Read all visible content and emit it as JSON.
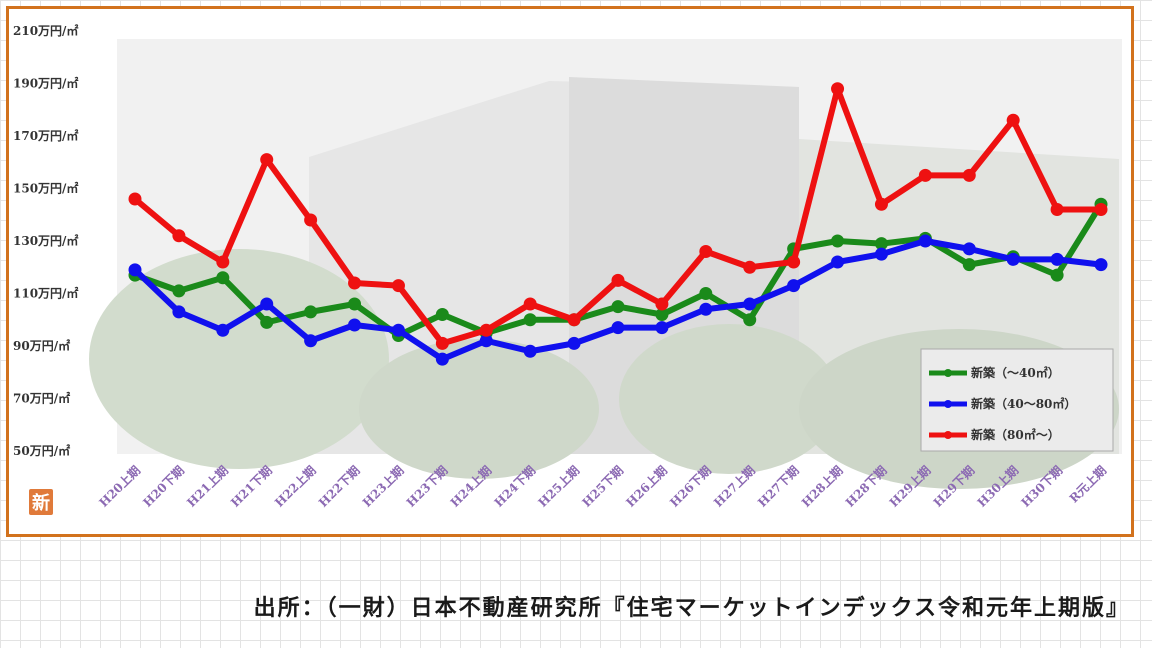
{
  "chart_data": {
    "type": "line",
    "categories": [
      "H20上期",
      "H20下期",
      "H21上期",
      "H21下期",
      "H22上期",
      "H22下期",
      "H23上期",
      "H23下期",
      "H24上期",
      "H24下期",
      "H25上期",
      "H25下期",
      "H26上期",
      "H26下期",
      "H27上期",
      "H27下期",
      "H28上期",
      "H28下期",
      "H29上期",
      "H29下期",
      "H30上期",
      "H30下期",
      "R元上期"
    ],
    "y_tick_labels": [
      "210万円/㎡",
      "190万円/㎡",
      "170万円/㎡",
      "150万円/㎡",
      "130万円/㎡",
      "110万円/㎡",
      "90万円/㎡",
      "70万円/㎡",
      "50万円/㎡"
    ],
    "y_ticks": [
      210,
      190,
      170,
      150,
      130,
      110,
      90,
      70,
      50
    ],
    "ylim": [
      50,
      210
    ],
    "legend_position": "bottom-right",
    "series": [
      {
        "name": "新築（～40㎡）",
        "color": "#1a8a1a",
        "values": [
          117,
          111,
          116,
          99,
          103,
          106,
          94,
          102,
          95,
          100,
          100,
          105,
          102,
          110,
          100,
          127,
          130,
          129,
          131,
          121,
          124,
          117,
          144
        ]
      },
      {
        "name": "新築（40～80㎡）",
        "color": "#1010ee",
        "values": [
          119,
          103,
          96,
          106,
          92,
          98,
          96,
          85,
          92,
          88,
          91,
          97,
          97,
          104,
          106,
          113,
          122,
          125,
          130,
          127,
          123,
          123,
          121
        ]
      },
      {
        "name": "新築（80㎡～）",
        "color": "#ee1111",
        "values": [
          146,
          132,
          122,
          161,
          138,
          114,
          113,
          91,
          96,
          106,
          100,
          115,
          106,
          126,
          120,
          122,
          188,
          144,
          155,
          155,
          176,
          142,
          142
        ]
      }
    ]
  },
  "logo_text": "新",
  "source_text": "出所：（一財）日本不動産研究所『住宅マーケットインデックス令和元年上期版』"
}
